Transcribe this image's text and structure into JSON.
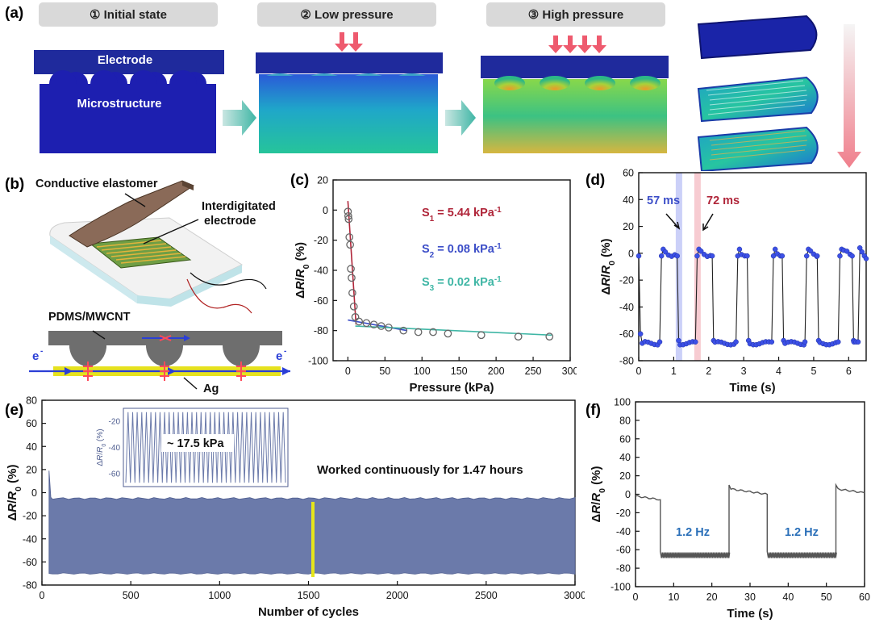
{
  "panel_labels": {
    "a": "(a)",
    "b": "(b)",
    "c": "(c)",
    "d": "(d)",
    "e": "(e)",
    "f": "(f)"
  },
  "panel_a": {
    "stage1": "① Initial state",
    "stage2": "② Low pressure",
    "stage3": "③ High pressure",
    "electrode_label": "Electrode",
    "microstructure_label": "Microstructure"
  },
  "panel_b": {
    "conductive_elastomer": "Conductive elastomer",
    "interdigitated_line1": "Interdigitated",
    "interdigitated_line2": "electrode",
    "pdms": "PDMS/MWCNT",
    "electron": "e",
    "electron_sup": "-",
    "ag": "Ag"
  },
  "colors": {
    "electrode": "#1f2a9c",
    "blue_dot": "#3c50e6",
    "teal": "#3fb6a5",
    "red": "#b0263a",
    "slate": "#6b7aaa",
    "gray_line": "#555555"
  },
  "chart_data": [
    {
      "id": "c",
      "type": "scatter",
      "xlabel": "Pressure (kPa)",
      "ylabel": "ΔR/R0 (%)",
      "xlim": [
        -20,
        300
      ],
      "ylim": [
        -100,
        20
      ],
      "xticks": [
        0,
        50,
        100,
        150,
        200,
        250,
        300
      ],
      "yticks": [
        -100,
        -80,
        -60,
        -40,
        -20,
        0,
        20
      ],
      "points": [
        [
          0,
          -1
        ],
        [
          0.5,
          -4
        ],
        [
          1,
          -6
        ],
        [
          2,
          -18
        ],
        [
          3,
          -23
        ],
        [
          4,
          -39
        ],
        [
          5,
          -45
        ],
        [
          6,
          -55
        ],
        [
          8,
          -64
        ],
        [
          10,
          -71
        ],
        [
          15,
          -74
        ],
        [
          25,
          -75
        ],
        [
          35,
          -76
        ],
        [
          45,
          -77
        ],
        [
          55,
          -78
        ],
        [
          75,
          -80
        ],
        [
          95,
          -81
        ],
        [
          115,
          -81
        ],
        [
          135,
          -82
        ],
        [
          180,
          -83
        ],
        [
          230,
          -84
        ],
        [
          272,
          -84
        ]
      ],
      "fits": [
        {
          "name": "S1",
          "color": "#b0263a",
          "x": [
            0,
            11
          ],
          "y": [
            6,
            -76
          ]
        },
        {
          "name": "S2",
          "color": "#3c4ec8",
          "x": [
            0,
            80
          ],
          "y": [
            -73,
            -80
          ]
        },
        {
          "name": "S3",
          "color": "#3fb6a5",
          "x": [
            10,
            275
          ],
          "y": [
            -77,
            -83
          ]
        }
      ],
      "annotations": [
        {
          "prefix": "S",
          "sub": "1",
          "value": " = 5.44 kPa",
          "sup": "-1",
          "color": "#b0263a"
        },
        {
          "prefix": "S",
          "sub": "2",
          "value": " = 0.08 kPa",
          "sup": "-1",
          "color": "#3c4ec8"
        },
        {
          "prefix": "S",
          "sub": "3",
          "value": " = 0.02 kPa",
          "sup": "-1",
          "color": "#3fb6a5"
        }
      ]
    },
    {
      "id": "d",
      "type": "line",
      "xlabel": "Time (s)",
      "ylabel": "ΔR/R0 (%)",
      "xlim": [
        0,
        6.5
      ],
      "ylim": [
        -80,
        60
      ],
      "xticks": [
        0,
        1,
        2,
        3,
        4,
        5,
        6
      ],
      "yticks": [
        -80,
        -60,
        -40,
        -20,
        0,
        20,
        40,
        60
      ],
      "cycles": [
        {
          "fall": 0.1,
          "rise": 0.6,
          "fall2": 1.1
        },
        {
          "rise": 1.62,
          "fall2": 2.1
        },
        {
          "rise": 2.78,
          "fall2": 3.1
        },
        {
          "rise": 3.8,
          "fall2": 4.1
        },
        {
          "rise": 4.75,
          "fall2": 5.1
        },
        {
          "rise": 5.7,
          "fall2": 6.1
        },
        {
          "rise": 6.05
        }
      ],
      "annotations": [
        {
          "text": "57 ms",
          "color": "#3c4ec8"
        },
        {
          "text": "72 ms",
          "color": "#b0263a"
        }
      ],
      "highlights": [
        {
          "x": 1.15,
          "color": "#b9c0f5"
        },
        {
          "x": 1.68,
          "color": "#f4b9c2"
        }
      ]
    },
    {
      "id": "e",
      "type": "area",
      "xlabel": "Number of cycles",
      "ylabel": "ΔR/R0 (%)",
      "xlim": [
        0,
        3000
      ],
      "ylim": [
        -80,
        80
      ],
      "xticks": [
        0,
        500,
        1000,
        1500,
        2000,
        2500,
        3000
      ],
      "yticks": [
        -80,
        -60,
        -40,
        -20,
        0,
        20,
        40,
        60,
        80
      ],
      "band_upper": -5,
      "band_lower": -70,
      "spike": 19,
      "highlight_cycle": 1525,
      "annotation": "Worked continuously for 1.47 hours",
      "inset": {
        "label": "~ 17.5 kPa",
        "yticks": [
          -20,
          -40,
          -60
        ],
        "ylabel": "ΔR/R0 (%)",
        "cycles": 35,
        "top": -13,
        "bottom": -67
      }
    },
    {
      "id": "f",
      "type": "line",
      "xlabel": "Time (s)",
      "ylabel": "ΔR/R0 (%)",
      "xlim": [
        0,
        60
      ],
      "ylim": [
        -100,
        100
      ],
      "xticks": [
        0,
        10,
        20,
        30,
        40,
        50,
        60
      ],
      "yticks": [
        -100,
        -80,
        -60,
        -40,
        -20,
        0,
        20,
        40,
        60,
        80,
        100
      ],
      "segments": [
        {
          "x0": 0,
          "x1": 6.5,
          "level": -2
        },
        {
          "x0": 6.5,
          "x1": 24.5,
          "level": -66,
          "ripple": true
        },
        {
          "x0": 24.5,
          "x1": 34.5,
          "level": 6
        },
        {
          "x0": 34.5,
          "x1": 52.5,
          "level": -66,
          "ripple": true
        },
        {
          "x0": 52.5,
          "x1": 60,
          "level": 6
        }
      ],
      "annotations": [
        {
          "text": "1.2 Hz"
        },
        {
          "text": "1.2 Hz"
        }
      ]
    }
  ]
}
